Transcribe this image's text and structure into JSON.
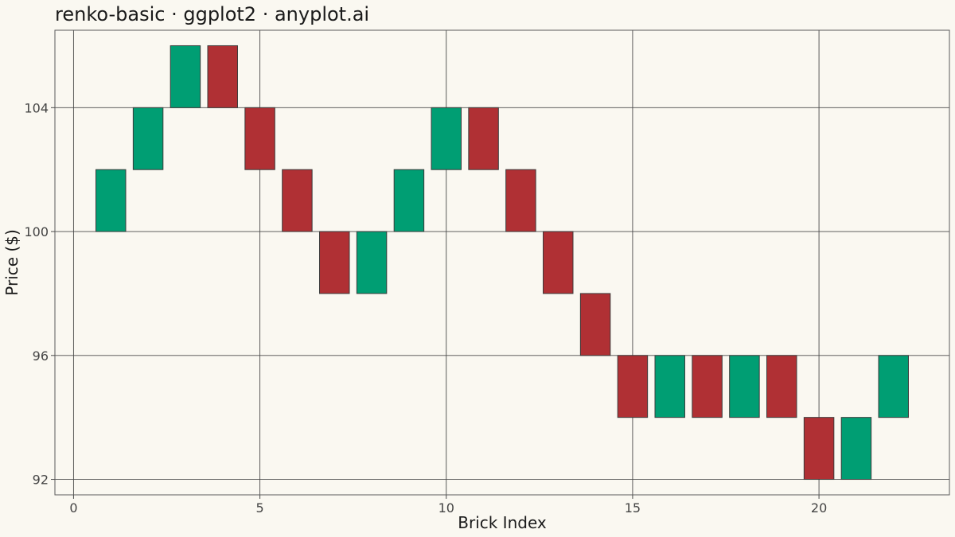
{
  "chart_data": {
    "type": "bar",
    "subtype": "renko",
    "title": "renko-basic · ggplot2 · anyplot.ai",
    "xlabel": "Brick Index",
    "ylabel": "Price ($)",
    "xlim": [
      -0.5,
      23.5
    ],
    "ylim": [
      91.5,
      106.5
    ],
    "x_ticks": [
      0,
      5,
      10,
      15,
      20
    ],
    "x_tick_labels": [
      "0",
      "5",
      "10",
      "15",
      "20"
    ],
    "y_ticks": [
      92,
      96,
      100,
      104
    ],
    "y_tick_labels": [
      "92",
      "96",
      "100",
      "104"
    ],
    "brick_size": 2,
    "grid": true,
    "legend": "none",
    "colors": {
      "up": "#009E73",
      "down": "#B03034",
      "border": "#3A3A3A",
      "grid": "#4A4A4A",
      "panel_border": "#5A5A5A",
      "background": "#FAF8F1"
    },
    "bricks": [
      {
        "index": 1,
        "low": 100,
        "high": 102,
        "direction": "up"
      },
      {
        "index": 2,
        "low": 102,
        "high": 104,
        "direction": "up"
      },
      {
        "index": 3,
        "low": 104,
        "high": 106,
        "direction": "up"
      },
      {
        "index": 4,
        "low": 104,
        "high": 106,
        "direction": "down"
      },
      {
        "index": 5,
        "low": 102,
        "high": 104,
        "direction": "down"
      },
      {
        "index": 6,
        "low": 100,
        "high": 102,
        "direction": "down"
      },
      {
        "index": 7,
        "low": 98,
        "high": 100,
        "direction": "down"
      },
      {
        "index": 8,
        "low": 98,
        "high": 100,
        "direction": "up"
      },
      {
        "index": 9,
        "low": 100,
        "high": 102,
        "direction": "up"
      },
      {
        "index": 10,
        "low": 102,
        "high": 104,
        "direction": "up"
      },
      {
        "index": 11,
        "low": 102,
        "high": 104,
        "direction": "down"
      },
      {
        "index": 12,
        "low": 100,
        "high": 102,
        "direction": "down"
      },
      {
        "index": 13,
        "low": 98,
        "high": 100,
        "direction": "down"
      },
      {
        "index": 14,
        "low": 96,
        "high": 98,
        "direction": "down"
      },
      {
        "index": 15,
        "low": 94,
        "high": 96,
        "direction": "down"
      },
      {
        "index": 16,
        "low": 94,
        "high": 96,
        "direction": "up"
      },
      {
        "index": 17,
        "low": 94,
        "high": 96,
        "direction": "down"
      },
      {
        "index": 18,
        "low": 94,
        "high": 96,
        "direction": "up"
      },
      {
        "index": 19,
        "low": 94,
        "high": 96,
        "direction": "down"
      },
      {
        "index": 20,
        "low": 92,
        "high": 94,
        "direction": "down"
      },
      {
        "index": 21,
        "low": 92,
        "high": 94,
        "direction": "up"
      },
      {
        "index": 22,
        "low": 94,
        "high": 96,
        "direction": "up"
      }
    ]
  }
}
